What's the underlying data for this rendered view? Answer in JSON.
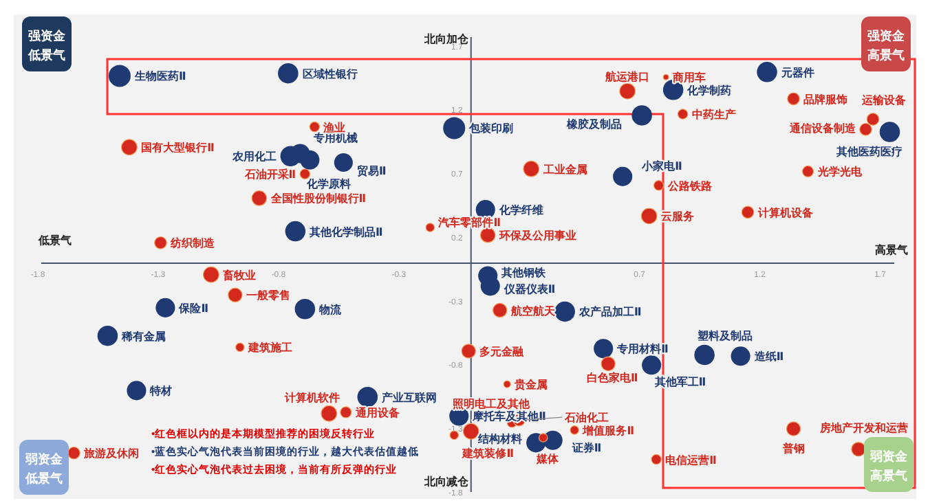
{
  "chart_data": {
    "type": "bubble",
    "xlim": [
      -1.9,
      1.85
    ],
    "ylim": [
      -1.85,
      1.95
    ],
    "xticks": [
      -1.8,
      -1.3,
      -0.8,
      -0.3,
      0.7,
      1.2,
      1.7
    ],
    "yticks": [
      1.7,
      1.2,
      0.7,
      0.2,
      -0.3,
      -0.8,
      -1.3,
      -1.8
    ],
    "series": [
      {
        "color": "#1f3a73",
        "x": [
          -1.46,
          -0.76,
          -0.75,
          -0.71,
          -0.67,
          -0.53,
          -0.73,
          -0.07,
          0.06,
          0.71,
          0.84,
          1.23,
          1.74,
          0.63,
          0.07,
          0.08,
          0.39,
          -0.69,
          -1.27,
          -1.51,
          -1.39,
          -0.43,
          -0.05,
          0.27,
          0.34,
          0.55,
          0.75,
          0.97,
          1.12
        ],
        "values": [
          1.47,
          1.49,
          0.84,
          0.86,
          0.81,
          0.79,
          0.25,
          1.06,
          0.42,
          1.16,
          1.36,
          1.5,
          1.03,
          0.68,
          -0.1,
          -0.18,
          -0.38,
          -0.36,
          -0.35,
          -0.57,
          -1.0,
          -1.05,
          -1.2,
          -1.41,
          -1.39,
          -0.67,
          -0.8,
          -0.72,
          -0.73
        ],
        "sizes": [
          1,
          0.85,
          0.85,
          0.77,
          0.77,
          0.72,
          0.85,
          1,
          0.77,
          0.85,
          0.85,
          0.85,
          0.85,
          0.77,
          0.77,
          0.77,
          0.85,
          0.85,
          0.77,
          0.85,
          0.77,
          0.85,
          0.77,
          0.77,
          0.77,
          0.77,
          0.77,
          0.85,
          0.77
        ]
      },
      {
        "color": "#d3281e",
        "x": [
          -1.42,
          -0.65,
          -0.69,
          -0.88,
          -1.29,
          -0.17,
          0.07,
          0.25,
          0.65,
          0.81,
          0.88,
          1.34,
          1.67,
          1.64,
          1.4,
          0.78,
          0.74,
          1.15,
          -1.08,
          -0.98,
          -0.96,
          -0.59,
          -0.52,
          0.12,
          -0.01,
          0.15,
          0.17,
          0.2,
          0.43,
          0.3,
          -0.07,
          0.57,
          0.77,
          1.34,
          1.61,
          -1.65,
          0.0
        ],
        "values": [
          0.91,
          1.07,
          0.7,
          0.51,
          0.16,
          0.28,
          0.22,
          0.74,
          1.35,
          1.46,
          1.17,
          1.29,
          1.13,
          1.05,
          0.72,
          0.61,
          0.37,
          0.4,
          -0.09,
          -0.25,
          -0.66,
          -1.18,
          -1.17,
          -0.37,
          -0.69,
          -0.95,
          -1.25,
          -1.23,
          -1.31,
          -1.37,
          -1.35,
          -0.79,
          -1.54,
          -1.3,
          -1.46,
          -1.49,
          -1.32
        ],
        "sizes": [
          0.5,
          0.2,
          0.2,
          0.45,
          0.3,
          0.15,
          0.45,
          0.5,
          0.5,
          0.06,
          0.2,
          0.3,
          0.3,
          0.3,
          0.25,
          0.2,
          0.5,
          0.3,
          0.5,
          0.4,
          0.15,
          0.5,
          0.25,
          0.4,
          0.4,
          0.1,
          0.2,
          0.3,
          0.15,
          0.15,
          0.15,
          0.4,
          0.2,
          0.4,
          0.4,
          0.3,
          0.5
        ]
      }
    ],
    "annotations": [
      "北向加仓",
      "北向减仓",
      "低景气",
      "高景气",
      "强资金",
      "低景气",
      "强资金",
      "高景气",
      "弱资金",
      "低景气",
      "弱资金",
      "高景气",
      "•红色框以内的是本期模型推荐的困境反转行业",
      "•蓝色实心气泡代表当前困境的行业，越大代表估值越低",
      "•红色实心气泡代表过去困境，当前有所反弹的行业",
      {
        "text": "生物医药Ⅱ",
        "x": -1.46,
        "y": 1.47
      },
      {
        "text": "区域性银行",
        "x": -0.76,
        "y": 1.49
      },
      {
        "text": "农用化工",
        "x": -0.75,
        "y": 0.84
      },
      {
        "text": "专用机械",
        "x": -0.71,
        "y": 0.86
      },
      {
        "text": "化学原料",
        "x": -0.67,
        "y": 0.81
      },
      {
        "text": "贸易Ⅱ",
        "x": -0.53,
        "y": 0.79
      },
      {
        "text": "其他化学制品Ⅱ",
        "x": -0.73,
        "y": 0.25
      },
      {
        "text": "包装印刷",
        "x": -0.07,
        "y": 1.06
      },
      {
        "text": "化学纤维",
        "x": 0.06,
        "y": 0.42
      },
      {
        "text": "橡胶及制品",
        "x": 0.71,
        "y": 1.16
      },
      {
        "text": "化学制药",
        "x": 0.84,
        "y": 1.36
      },
      {
        "text": "元器件",
        "x": 1.23,
        "y": 1.5
      },
      {
        "text": "其他医药医疗",
        "x": 1.74,
        "y": 1.03
      },
      {
        "text": "小家电Ⅱ",
        "x": 0.63,
        "y": 0.68
      },
      {
        "text": "其他钢铁",
        "x": 0.07,
        "y": -0.1
      },
      {
        "text": "仪器仪表Ⅱ",
        "x": 0.08,
        "y": -0.18
      },
      {
        "text": "农产品加工Ⅱ",
        "x": 0.39,
        "y": -0.38
      },
      {
        "text": "物流",
        "x": -0.69,
        "y": -0.36
      },
      {
        "text": "保险Ⅱ",
        "x": -1.27,
        "y": -0.35
      },
      {
        "text": "稀有金属",
        "x": -1.51,
        "y": -0.57
      },
      {
        "text": "特材",
        "x": -1.39,
        "y": -1.0
      },
      {
        "text": "产业互联网",
        "x": -0.43,
        "y": -1.05
      },
      {
        "text": "摩托车及其他Ⅱ",
        "x": -0.05,
        "y": -1.2
      },
      {
        "text": "结构材料",
        "x": 0.27,
        "y": -1.41
      },
      {
        "text": "证券Ⅱ",
        "x": 0.34,
        "y": -1.39
      },
      {
        "text": "专用材料Ⅱ",
        "x": 0.55,
        "y": -0.67
      },
      {
        "text": "其他军工Ⅱ",
        "x": 0.75,
        "y": -0.8
      },
      {
        "text": "塑料及制品",
        "x": 0.97,
        "y": -0.72
      },
      {
        "text": "造纸Ⅱ",
        "x": 1.12,
        "y": -0.73
      },
      {
        "text": "国有大型银行Ⅱ",
        "x": -1.42,
        "y": 0.91
      },
      {
        "text": "渔业",
        "x": -0.65,
        "y": 1.07
      },
      {
        "text": "石油开采Ⅱ",
        "x": -0.69,
        "y": 0.7
      },
      {
        "text": "全国性股份制银行Ⅱ",
        "x": -0.88,
        "y": 0.51
      },
      {
        "text": "纺织制造",
        "x": -1.29,
        "y": 0.16
      },
      {
        "text": "汽车零部件Ⅱ",
        "x": -0.17,
        "y": 0.28
      },
      {
        "text": "环保及公用事业",
        "x": 0.07,
        "y": 0.22
      },
      {
        "text": "工业金属",
        "x": 0.25,
        "y": 0.74
      },
      {
        "text": "航运港口",
        "x": 0.65,
        "y": 1.35
      },
      {
        "text": "商用车",
        "x": 0.81,
        "y": 1.46
      },
      {
        "text": "中药生产",
        "x": 0.88,
        "y": 1.17
      },
      {
        "text": "品牌服饰",
        "x": 1.34,
        "y": 1.29
      },
      {
        "text": "运输设备",
        "x": 1.67,
        "y": 1.13
      },
      {
        "text": "通信设备制造",
        "x": 1.64,
        "y": 1.05
      },
      {
        "text": "光学光电",
        "x": 1.4,
        "y": 0.72
      },
      {
        "text": "公路铁路",
        "x": 0.78,
        "y": 0.61
      },
      {
        "text": "云服务",
        "x": 0.74,
        "y": 0.37
      },
      {
        "text": "计算机设备",
        "x": 1.15,
        "y": 0.4
      },
      {
        "text": "畜牧业",
        "x": -1.08,
        "y": -0.09
      },
      {
        "text": "一般零售",
        "x": -0.98,
        "y": -0.25
      },
      {
        "text": "建筑施工",
        "x": -0.96,
        "y": -0.66
      },
      {
        "text": "计算机软件",
        "x": -0.59,
        "y": -1.18
      },
      {
        "text": "通用设备",
        "x": -0.52,
        "y": -1.17
      },
      {
        "text": "航空航天",
        "x": 0.12,
        "y": -0.37
      },
      {
        "text": "多元金融",
        "x": -0.01,
        "y": -0.69
      },
      {
        "text": "贵金属",
        "x": 0.15,
        "y": -0.95
      },
      {
        "text": "照明电工及其他",
        "x": 0.17,
        "y": -1.25
      },
      {
        "text": "石油化工",
        "x": 0.2,
        "y": -1.23
      },
      {
        "text": "增值服务Ⅱ",
        "x": 0.43,
        "y": -1.31
      },
      {
        "text": "媒体",
        "x": 0.3,
        "y": -1.37
      },
      {
        "text": "建筑装修Ⅱ",
        "x": -0.07,
        "y": -1.35
      },
      {
        "text": "白色家电Ⅱ",
        "x": 0.57,
        "y": -0.79
      },
      {
        "text": "电信运营Ⅱ",
        "x": 0.77,
        "y": -1.54
      },
      {
        "text": "普钢",
        "x": 1.34,
        "y": -1.3
      },
      {
        "text": "房地产开发和运营",
        "x": 1.61,
        "y": -1.46
      },
      {
        "text": "旅游及休闲",
        "x": -1.65,
        "y": -1.49
      }
    ]
  }
}
